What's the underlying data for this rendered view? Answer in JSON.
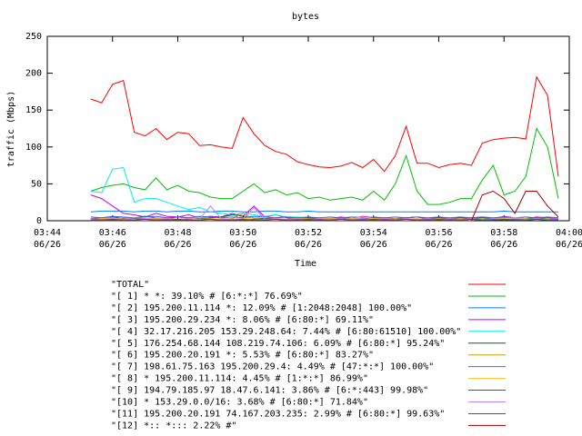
{
  "chart_data": {
    "type": "line",
    "title": "bytes",
    "ylabel": "traffic (Mbps)",
    "xlabel": "Time",
    "ylim": [
      0,
      250
    ],
    "yticks": [
      0,
      50,
      100,
      150,
      200,
      250
    ],
    "xlim": [
      "03:44:00",
      "04:00:00"
    ],
    "xticks": [
      {
        "value": "03:44:00",
        "label": [
          "03:44",
          "06/26"
        ]
      },
      {
        "value": "03:46:00",
        "label": [
          "03:46",
          "06/26"
        ]
      },
      {
        "value": "03:48:00",
        "label": [
          "03:48",
          "06/26"
        ]
      },
      {
        "value": "03:50:00",
        "label": [
          "03:50",
          "06/26"
        ]
      },
      {
        "value": "03:52:00",
        "label": [
          "03:52",
          "06/26"
        ]
      },
      {
        "value": "03:54:00",
        "label": [
          "03:54",
          "06/26"
        ]
      },
      {
        "value": "03:56:00",
        "label": [
          "03:56",
          "06/26"
        ]
      },
      {
        "value": "03:58:00",
        "label": [
          "03:58",
          "06/26"
        ]
      },
      {
        "value": "04:00:00",
        "label": [
          "04:00",
          "06/26"
        ]
      }
    ],
    "x": [
      "03:45:20",
      "03:45:40",
      "03:46:00",
      "03:46:20",
      "03:46:40",
      "03:47:00",
      "03:47:20",
      "03:47:40",
      "03:48:00",
      "03:48:20",
      "03:48:40",
      "03:49:00",
      "03:49:20",
      "03:49:40",
      "03:50:00",
      "03:50:20",
      "03:50:40",
      "03:51:00",
      "03:51:20",
      "03:51:40",
      "03:52:00",
      "03:52:20",
      "03:52:40",
      "03:53:00",
      "03:53:20",
      "03:53:40",
      "03:54:00",
      "03:54:20",
      "03:54:40",
      "03:55:00",
      "03:55:20",
      "03:55:40",
      "03:56:00",
      "03:56:20",
      "03:56:40",
      "03:57:00",
      "03:57:20",
      "03:57:40",
      "03:58:00",
      "03:58:20",
      "03:58:40",
      "03:59:00",
      "03:59:20",
      "03:59:40"
    ],
    "series": [
      {
        "name": "\"TOTAL\"",
        "color": "#ff0000",
        "values": [
          165,
          160,
          185,
          190,
          120,
          115,
          125,
          110,
          120,
          118,
          102,
          103,
          100,
          98,
          140,
          118,
          102,
          94,
          90,
          80,
          76,
          73,
          72,
          74,
          79,
          72,
          83,
          67,
          88,
          128,
          78,
          78,
          72,
          76,
          78,
          75,
          105,
          110,
          112,
          113,
          111,
          195,
          170,
          60
        ]
      },
      {
        "name": "\"[ 1] * *: 39.10% # [6:*:*] 76.69%\"",
        "color": "#00c000",
        "values": [
          40,
          45,
          48,
          50,
          45,
          42,
          58,
          42,
          48,
          40,
          38,
          32,
          30,
          30,
          40,
          50,
          38,
          42,
          35,
          38,
          30,
          32,
          28,
          30,
          32,
          28,
          40,
          28,
          50,
          88,
          40,
          22,
          22,
          25,
          30,
          30,
          55,
          75,
          35,
          40,
          60,
          125,
          100,
          30
        ]
      },
      {
        "name": "\"[ 2] 195.200.11.114 *: 12.09% # [1:2048:2048] 100.00%\"",
        "color": "#0080ff",
        "values": [
          12,
          13,
          13,
          13,
          12,
          13,
          13,
          12,
          13,
          13,
          12,
          12,
          13,
          13,
          12,
          12,
          13,
          13,
          12,
          12,
          13,
          12,
          12,
          12,
          12,
          12,
          12,
          12,
          12,
          12,
          12,
          12,
          12,
          12,
          12,
          12,
          12,
          12,
          13,
          12,
          12,
          12,
          12,
          12
        ]
      },
      {
        "name": "\"[ 3] 195.200.29.234 *: 8.06% # [6:80:*] 69.11%\"",
        "color": "#c000ff",
        "values": [
          35,
          30,
          20,
          10,
          8,
          5,
          10,
          6,
          5,
          8,
          4,
          6,
          5,
          10,
          6,
          20,
          5,
          8,
          4,
          3,
          4,
          3,
          3,
          5,
          3,
          6,
          4,
          3,
          3,
          4,
          5,
          3,
          4,
          3,
          3,
          4,
          5,
          3,
          6,
          4,
          3,
          5,
          4,
          3
        ]
      },
      {
        "name": "\"[ 4] 32.17.216.205 153.29.248.64: 7.44% # [6:80:61510] 100.00%\"",
        "color": "#00eeee",
        "values": [
          40,
          38,
          70,
          72,
          25,
          30,
          30,
          25,
          20,
          15,
          18,
          12,
          10,
          8,
          10,
          8,
          6,
          8,
          5,
          5,
          4,
          4,
          3,
          3,
          3,
          3,
          2,
          2,
          2,
          2,
          2,
          2,
          2,
          2,
          2,
          2,
          2,
          2,
          2,
          2,
          2,
          2,
          2,
          2
        ]
      },
      {
        "name": "\"[ 5] 176.254.68.144 108.219.74.106: 6.09% # [6:80:*] 95.24%\"",
        "color": "#006020",
        "values": [
          3,
          4,
          5,
          3,
          4,
          6,
          4,
          3,
          5,
          4,
          3,
          4,
          5,
          8,
          6,
          4,
          3,
          4,
          5,
          3,
          4,
          3,
          4,
          3,
          5,
          4,
          3,
          4,
          3,
          4,
          5,
          3,
          4,
          3,
          4,
          3,
          4,
          3,
          5,
          4,
          3,
          4,
          3,
          2
        ]
      },
      {
        "name": "\"[ 6] 195.200.20.191 *: 5.53% # [6:80:*] 83.27%\"",
        "color": "#c8a000",
        "values": [
          2,
          3,
          2,
          4,
          3,
          2,
          3,
          4,
          2,
          3,
          5,
          3,
          2,
          3,
          10,
          3,
          2,
          3,
          2,
          4,
          3,
          2,
          3,
          2,
          3,
          2,
          3,
          4,
          2,
          3,
          2,
          3,
          2,
          3,
          2,
          3,
          2,
          3,
          4,
          3,
          2,
          3,
          2,
          2
        ]
      },
      {
        "name": "\"[ 7] 198.61.75.163 195.200.29.4: 4.49% # [47:*:*] 100.00%\"",
        "color": "#4169e1",
        "values": [
          5,
          4,
          6,
          5,
          4,
          5,
          6,
          4,
          5,
          4,
          6,
          5,
          4,
          5,
          4,
          6,
          5,
          4,
          5,
          4,
          5,
          4,
          5,
          4,
          5,
          4,
          5,
          4,
          5,
          4,
          5,
          4,
          5,
          4,
          5,
          4,
          5,
          4,
          5,
          4,
          5,
          4,
          5,
          4
        ]
      },
      {
        "name": "\"[ 8] * 195.200.11.114: 4.45% # [1:*:*] 86.99%\"",
        "color": "#ffc020",
        "values": [
          2,
          3,
          4,
          2,
          3,
          2,
          4,
          3,
          2,
          3,
          4,
          2,
          3,
          2,
          3,
          4,
          2,
          3,
          2,
          3,
          2,
          3,
          4,
          2,
          3,
          5,
          3,
          2,
          3,
          2,
          3,
          2,
          3,
          2,
          3,
          2,
          3,
          2,
          3,
          4,
          3,
          2,
          3,
          2
        ]
      },
      {
        "name": "\"[ 9] 194.79.185.97 18.47.6.141: 3.86% # [6:*:443] 99.98%\"",
        "color": "#008040",
        "values": [
          1,
          2,
          1,
          2,
          3,
          2,
          1,
          2,
          1,
          2,
          3,
          2,
          1,
          2,
          1,
          2,
          3,
          2,
          1,
          2,
          1,
          2,
          1,
          2,
          1,
          2,
          1,
          2,
          1,
          2,
          1,
          2,
          1,
          2,
          1,
          2,
          1,
          2,
          1,
          2,
          1,
          2,
          1,
          2
        ]
      },
      {
        "name": "\"[10] * 153.29.0.0/16: 3.68% # [6:80:*] 71.84%\"",
        "color": "#c080ff",
        "values": [
          3,
          2,
          3,
          2,
          4,
          3,
          2,
          3,
          2,
          3,
          2,
          20,
          3,
          2,
          3,
          18,
          2,
          3,
          2,
          3,
          2,
          3,
          2,
          3,
          2,
          3,
          2,
          3,
          2,
          3,
          2,
          3,
          2,
          3,
          2,
          3,
          2,
          3,
          2,
          3,
          2,
          3,
          2,
          3
        ]
      },
      {
        "name": "\"[11] 195.200.20.191 74.167.203.235: 2.99% # [6:80:*] 99.63%\"",
        "color": "#306080",
        "values": [
          1,
          1,
          2,
          1,
          1,
          2,
          1,
          1,
          2,
          1,
          1,
          2,
          1,
          1,
          2,
          1,
          1,
          2,
          1,
          1,
          2,
          1,
          1,
          2,
          1,
          1,
          2,
          1,
          1,
          2,
          1,
          1,
          2,
          1,
          1,
          2,
          1,
          1,
          2,
          1,
          1,
          2,
          1,
          1
        ]
      },
      {
        "name": "\"[12] *:: *::: 2.22% #\"",
        "color": "#a00000",
        "values": [
          0,
          0,
          0,
          0,
          0,
          0,
          0,
          0,
          0,
          0,
          0,
          0,
          0,
          0,
          0,
          0,
          0,
          0,
          0,
          0,
          0,
          0,
          0,
          0,
          0,
          0,
          0,
          0,
          0,
          0,
          0,
          0,
          0,
          0,
          0,
          0,
          35,
          40,
          30,
          10,
          40,
          40,
          20,
          5
        ]
      }
    ]
  }
}
